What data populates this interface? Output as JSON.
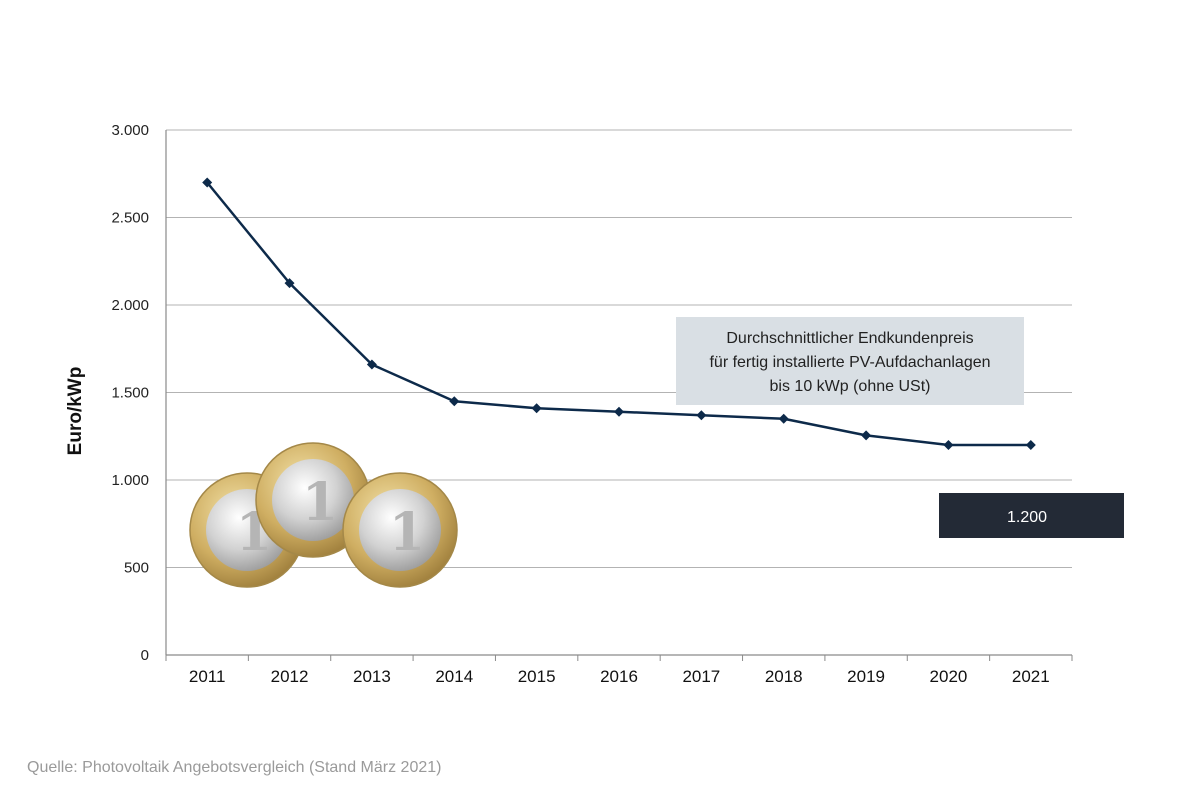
{
  "chart_data": {
    "type": "line",
    "title": "",
    "xlabel": "",
    "ylabel": "Euro/kWp",
    "ylim": [
      0,
      3000
    ],
    "y_ticks": [
      0,
      500,
      1000,
      1500,
      2000,
      2500,
      3000
    ],
    "y_tick_labels": [
      "0",
      "500",
      "1.000",
      "1.500",
      "2.000",
      "2.500",
      "3.000"
    ],
    "categories": [
      "2011",
      "2012",
      "2013",
      "2014",
      "2015",
      "2016",
      "2017",
      "2018",
      "2019",
      "2020",
      "2021"
    ],
    "series": [
      {
        "values": [
          2700,
          2125,
          1660,
          1450,
          1410,
          1390,
          1370,
          1350,
          1255,
          1200,
          1200
        ]
      }
    ],
    "grid": true,
    "legend": "none",
    "annotation": {
      "lines": [
        "Durchschnittlicher Endkundenpreis",
        "für fertig installierte PV-Aufdachanlagen",
        "bis 10 kWp (ohne USt)"
      ]
    },
    "value_label": "1.200"
  },
  "colors": {
    "line": "#0d2a4a",
    "grid": "#b3b3b3",
    "annotation_bg": "#d9dfe4",
    "value_box": "#232a36"
  },
  "source": "Quelle: Photovoltaik Angebotsvergleich (Stand März 2021)"
}
